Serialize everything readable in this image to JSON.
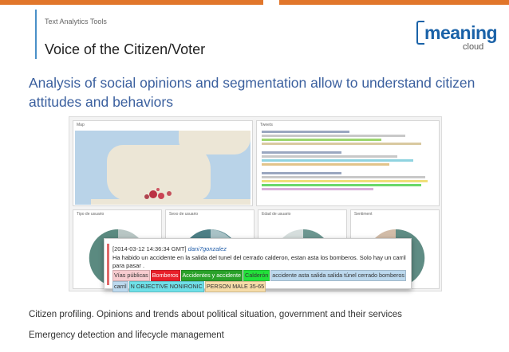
{
  "brand_colors": {
    "orange": "#e1762b",
    "blue": "#3a5f9e",
    "logo_blue": "#1a62a8"
  },
  "header": {
    "kicker": "Text Analytics Tools",
    "title": "Voice of the Citizen/Voter"
  },
  "logo": {
    "word": "meaning",
    "sub": "cloud"
  },
  "headline": "Analysis of social opinions and segmentation allow to understand citizen attitudes and behaviors",
  "dashboard": {
    "map_panel_title": "Map",
    "tweets_panel_title": "Tweets",
    "pie_titles": [
      "Tipo de usuario",
      "Sexo de usuario",
      "Edad de usuario",
      "Sentiment"
    ]
  },
  "callout": {
    "timestamp": "[2014-03-12 14:36:34 GMT]",
    "user": "dani7gonzalez",
    "text": "Ha habido un accidente en la salida del tunel del cerrado calderon, estan asta los bomberos. Solo hay un carril para pasar .",
    "tags": [
      {
        "label": "Vías públicas",
        "color": "#f8ccd0"
      },
      {
        "label": "Bomberos",
        "color": "#e8202a"
      },
      {
        "label": "Accidentes y accidente",
        "color": "#2aa12a"
      },
      {
        "label": "Calderón",
        "color": "#22e13a"
      },
      {
        "label": "accidente asta salida salida túnel cerrado bomberos",
        "color": "#bcd9ee"
      },
      {
        "label": "carril",
        "color": "#bcd9ee"
      },
      {
        "label": "N OBJECTIVE NONIRONIC",
        "color": "#6fe0e8"
      },
      {
        "label": "PERSON MALE 35-65",
        "color": "#f6dca8"
      }
    ]
  },
  "bullets": [
    "Citizen profiling. Opinions and trends about political situation, government and their services",
    "Emergency detection and lifecycle management"
  ]
}
